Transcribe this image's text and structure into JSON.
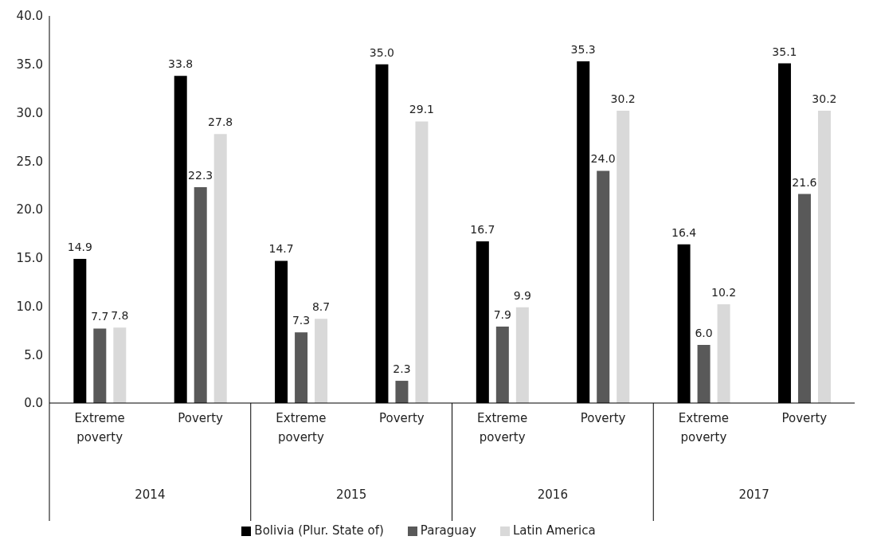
{
  "chart_data": {
    "type": "bar",
    "categories": [
      "Extreme poverty",
      "Poverty",
      "Extreme poverty",
      "Poverty",
      "Extreme poverty",
      "Poverty",
      "Extreme poverty",
      "Poverty"
    ],
    "annotations": [
      "2014",
      "2015",
      "2016",
      "2017"
    ],
    "series": [
      {
        "name": "Bolivia (Plur. State of)",
        "color": "#000000",
        "values": [
          14.9,
          33.8,
          14.7,
          35.0,
          16.7,
          35.3,
          16.4,
          35.1
        ],
        "value_labels": [
          "14.9",
          "33.8",
          "14.7",
          "35.0",
          "16.7",
          "35.3",
          "16.4",
          "35.1"
        ]
      },
      {
        "name": "Paraguay",
        "color": "#595959",
        "values": [
          7.7,
          22.3,
          7.3,
          2.3,
          7.9,
          24.0,
          6.0,
          21.6
        ],
        "value_labels": [
          "7.7",
          "22.3",
          "7.3",
          "2.3",
          "7.9",
          "24.0",
          "6.0",
          "21.6"
        ]
      },
      {
        "name": "Latin America",
        "color": "#d9d9d9",
        "values": [
          7.8,
          27.8,
          8.7,
          29.1,
          9.9,
          30.2,
          10.2,
          30.2
        ],
        "value_labels": [
          "7.8",
          "27.8",
          "8.7",
          "29.1",
          "9.9",
          "30.2",
          "10.2",
          "30.2"
        ]
      }
    ],
    "ylim": [
      0,
      40
    ],
    "yticks": [
      {
        "value": 0,
        "label": "0.0"
      },
      {
        "value": 5,
        "label": "5.0"
      },
      {
        "value": 10,
        "label": "10.0"
      },
      {
        "value": 15,
        "label": "15.0"
      },
      {
        "value": 20,
        "label": "20.0"
      },
      {
        "value": 25,
        "label": "25.0"
      },
      {
        "value": 30,
        "label": "30.0"
      },
      {
        "value": 35,
        "label": "35.0"
      },
      {
        "value": 40,
        "label": "40.0"
      }
    ],
    "grid": false,
    "legend": "bottom"
  }
}
